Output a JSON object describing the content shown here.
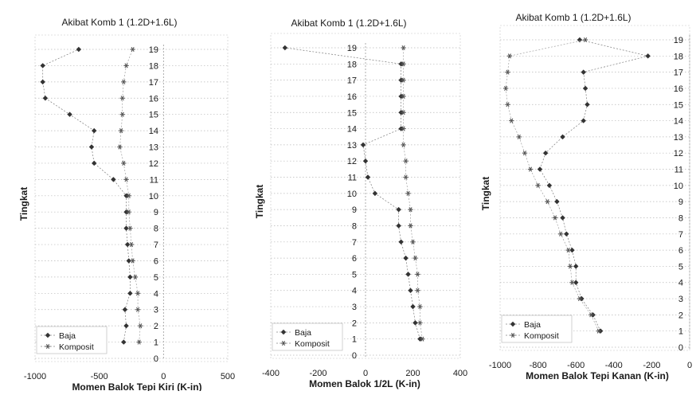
{
  "chart_data": [
    {
      "type": "line",
      "title": "Akibat Komb 1 (1.2D+1.6L)",
      "xlabel": "Momen Balok Tepi Kiri (K-in)",
      "ylabel": "Tingkat",
      "xlim": [
        -1000,
        500
      ],
      "x_ticks": [
        -1000,
        -500,
        0,
        500
      ],
      "ylim": [
        0,
        19
      ],
      "y_ticks": [
        0,
        1,
        2,
        3,
        4,
        5,
        6,
        7,
        8,
        9,
        10,
        11,
        12,
        13,
        14,
        15,
        16,
        17,
        18,
        19
      ],
      "grid": true,
      "legend": "bottom-left",
      "series": [
        {
          "name": "Baja",
          "x": [
            -310,
            -290,
            -300,
            -260,
            -260,
            -270,
            -280,
            -290,
            -290,
            -290,
            -390,
            -540,
            -560,
            -540,
            -730,
            -920,
            -940,
            -940,
            -660
          ],
          "y": [
            1,
            2,
            3,
            4,
            5,
            6,
            7,
            8,
            9,
            10,
            11,
            12,
            13,
            14,
            15,
            16,
            17,
            18,
            19
          ]
        },
        {
          "name": "Komposit",
          "x": [
            -190,
            -180,
            -200,
            -200,
            -220,
            -240,
            -250,
            -260,
            -270,
            -270,
            -290,
            -310,
            -340,
            -330,
            -320,
            -320,
            -310,
            -290,
            -240
          ],
          "y": [
            1,
            2,
            3,
            4,
            5,
            6,
            7,
            8,
            9,
            10,
            11,
            12,
            13,
            14,
            15,
            16,
            17,
            18,
            19
          ]
        }
      ]
    },
    {
      "type": "line",
      "title": "Akibat Komb 1 (1.2D+1.6L)",
      "xlabel": "Momen Balok 1/2L (K-in)",
      "ylabel": "Tingkat",
      "xlim": [
        -400,
        400
      ],
      "x_ticks": [
        -400,
        -200,
        0,
        200,
        400
      ],
      "ylim": [
        0,
        19
      ],
      "y_ticks": [
        0,
        1,
        2,
        3,
        4,
        5,
        6,
        7,
        8,
        9,
        10,
        11,
        12,
        13,
        14,
        15,
        16,
        17,
        18,
        19
      ],
      "grid": true,
      "legend": "bottom-left",
      "series": [
        {
          "name": "Baja",
          "x": [
            230,
            210,
            200,
            190,
            180,
            170,
            150,
            140,
            140,
            40,
            10,
            0,
            -10,
            150,
            150,
            150,
            150,
            150,
            -340
          ],
          "y": [
            1,
            2,
            3,
            4,
            5,
            6,
            7,
            8,
            9,
            10,
            11,
            12,
            13,
            14,
            15,
            16,
            17,
            18,
            19
          ]
        },
        {
          "name": "Komposit",
          "x": [
            240,
            230,
            230,
            220,
            220,
            210,
            200,
            190,
            190,
            180,
            170,
            170,
            160,
            160,
            160,
            160,
            160,
            160,
            160
          ],
          "y": [
            1,
            2,
            3,
            4,
            5,
            6,
            7,
            8,
            9,
            10,
            11,
            12,
            13,
            14,
            15,
            16,
            17,
            18,
            19
          ]
        }
      ]
    },
    {
      "type": "line",
      "title": "Akibat Komb 1 (1.2D+1.6L)",
      "xlabel": "Momen Balok Tepi Kanan (K-in)",
      "ylabel": "Tingkat",
      "xlim": [
        -1000,
        0
      ],
      "x_ticks": [
        -1000,
        -800,
        -600,
        -400,
        -200,
        0
      ],
      "ylim": [
        0,
        19
      ],
      "y_ticks": [
        0,
        1,
        2,
        3,
        4,
        5,
        6,
        7,
        8,
        9,
        10,
        11,
        12,
        13,
        14,
        15,
        16,
        17,
        18,
        19
      ],
      "grid": true,
      "legend": "bottom-left",
      "series": [
        {
          "name": "Baja",
          "x": [
            -470,
            -510,
            -570,
            -600,
            -600,
            -620,
            -650,
            -670,
            -700,
            -740,
            -790,
            -760,
            -670,
            -560,
            -540,
            -550,
            -560,
            -220,
            -580
          ],
          "y": [
            1,
            2,
            3,
            4,
            5,
            6,
            7,
            8,
            9,
            10,
            11,
            12,
            13,
            14,
            15,
            16,
            17,
            18,
            19
          ]
        },
        {
          "name": "Komposit",
          "x": [
            -480,
            -520,
            -580,
            -620,
            -630,
            -640,
            -680,
            -710,
            -750,
            -800,
            -840,
            -870,
            -900,
            -940,
            -960,
            -970,
            -960,
            -950,
            -550
          ],
          "y": [
            1,
            2,
            3,
            4,
            5,
            6,
            7,
            8,
            9,
            10,
            11,
            12,
            13,
            14,
            15,
            16,
            17,
            18,
            19
          ]
        }
      ]
    }
  ]
}
